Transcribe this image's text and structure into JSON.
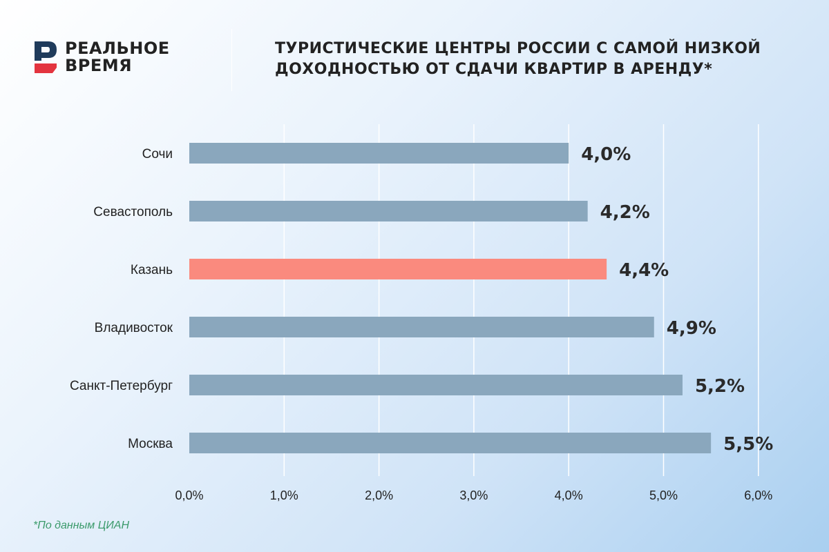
{
  "brand": {
    "line1": "РЕАЛЬНОЕ",
    "line2": "ВРЕМЯ"
  },
  "title_line1": "ТУРИСТИЧЕСКИЕ ЦЕНТРЫ РОССИИ С САМОЙ НИЗКОЙ",
  "title_line2": "ДОХОДНОСТЬЮ ОТ СДАЧИ КВАРТИР В АРЕНДУ*",
  "footnote": "*По данным ЦИАН",
  "colors": {
    "bar": "#8aa7bd",
    "highlight": "#fa8a7e",
    "label": "#222222",
    "logo_dark": "#1f3b5b",
    "logo_red": "#e3343f"
  },
  "chart_data": {
    "type": "bar",
    "orientation": "horizontal",
    "categories": [
      "Сочи",
      "Севастополь",
      "Казань",
      "Владивосток",
      "Санкт-Петербург",
      "Москва"
    ],
    "values": [
      4.0,
      4.2,
      4.4,
      4.9,
      5.2,
      5.5
    ],
    "value_labels": [
      "4,0%",
      "4,2%",
      "4,4%",
      "4,9%",
      "5,2%",
      "5,5%"
    ],
    "highlight_index": 2,
    "xlim": [
      0,
      6
    ],
    "xticks": [
      "0,0%",
      "1,0%",
      "2,0%",
      "3,0%",
      "4,0%",
      "5,0%",
      "6,0%"
    ],
    "grid": true
  }
}
